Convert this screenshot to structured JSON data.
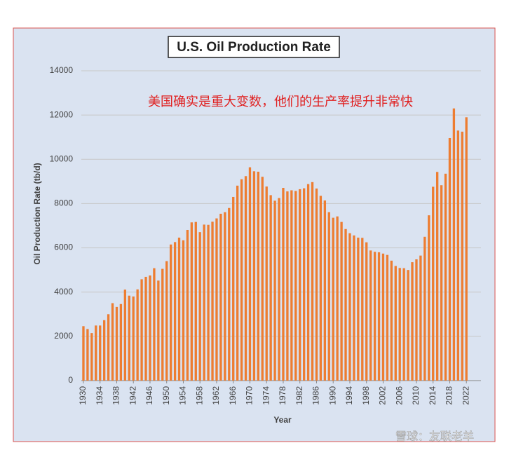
{
  "chart_data": {
    "type": "bar",
    "title": "U.S. Oil Production Rate",
    "annotation": "美国确实是重大变数，他们的生产率提升非常快",
    "watermark": "雪球：友联老羊",
    "x_label": "Year",
    "y_label": "Oil Production Rate (tb/d)",
    "color": "#ed7d31",
    "grid": true,
    "x": [
      1930,
      1931,
      1932,
      1933,
      1934,
      1935,
      1936,
      1937,
      1938,
      1939,
      1940,
      1941,
      1942,
      1943,
      1944,
      1945,
      1946,
      1947,
      1948,
      1949,
      1950,
      1951,
      1952,
      1953,
      1954,
      1955,
      1956,
      1957,
      1958,
      1959,
      1960,
      1961,
      1962,
      1963,
      1964,
      1965,
      1966,
      1967,
      1968,
      1969,
      1970,
      1971,
      1972,
      1973,
      1974,
      1975,
      1976,
      1977,
      1978,
      1979,
      1980,
      1981,
      1982,
      1983,
      1984,
      1985,
      1986,
      1987,
      1988,
      1989,
      1990,
      1991,
      1992,
      1993,
      1994,
      1995,
      1996,
      1997,
      1998,
      1999,
      2000,
      2001,
      2002,
      2003,
      2004,
      2005,
      2006,
      2007,
      2008,
      2009,
      2010,
      2011,
      2012,
      2013,
      2014,
      2015,
      2016,
      2017,
      2018,
      2019,
      2020,
      2021,
      2022
    ],
    "values": [
      2460,
      2330,
      2150,
      2490,
      2490,
      2730,
      3000,
      3500,
      3330,
      3460,
      4110,
      3840,
      3800,
      4120,
      4580,
      4690,
      4750,
      5080,
      4520,
      5050,
      5400,
      6150,
      6260,
      6460,
      6340,
      6810,
      7150,
      7170,
      6710,
      7050,
      7040,
      7180,
      7330,
      7540,
      7610,
      7800,
      8300,
      8810,
      9100,
      9240,
      9640,
      9460,
      9440,
      9210,
      8770,
      8380,
      8130,
      8250,
      8710,
      8550,
      8600,
      8570,
      8650,
      8690,
      8880,
      8970,
      8680,
      8350,
      8140,
      7610,
      7360,
      7420,
      7170,
      6850,
      6660,
      6560,
      6460,
      6450,
      6250,
      5880,
      5820,
      5800,
      5740,
      5680,
      5420,
      5180,
      5090,
      5080,
      5000,
      5350,
      5480,
      5650,
      6500,
      7470,
      8760,
      9430,
      8830,
      9350,
      10960,
      12300,
      11300,
      11250,
      11900
    ],
    "xlim": [
      1929.5,
      2025.5
    ],
    "xticks": [
      1930,
      1934,
      1938,
      1942,
      1946,
      1950,
      1954,
      1958,
      1962,
      1966,
      1970,
      1974,
      1978,
      1982,
      1986,
      1990,
      1994,
      1998,
      2002,
      2006,
      2010,
      2014,
      2018,
      2022
    ],
    "ylim": [
      0,
      14000
    ],
    "yticks": [
      0,
      2000,
      4000,
      6000,
      8000,
      10000,
      12000,
      14000
    ]
  }
}
